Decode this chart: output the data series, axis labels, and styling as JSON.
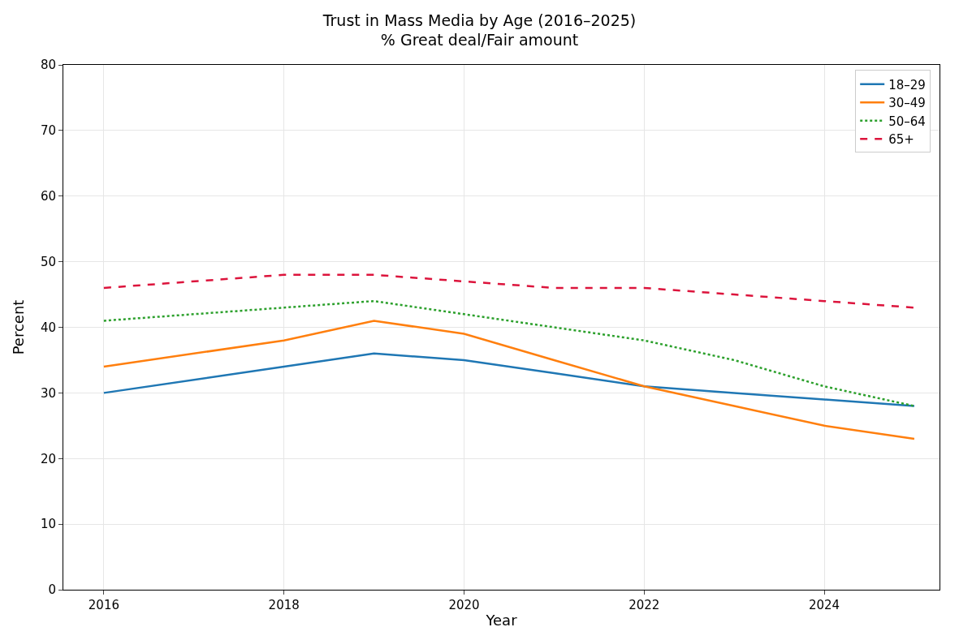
{
  "chart_data": {
    "type": "line",
    "title": "Trust in Mass Media by Age (2016–2025)",
    "subtitle": "% Great deal/Fair amount",
    "xlabel": "Year",
    "ylabel": "Percent",
    "x": [
      2016,
      2018,
      2019,
      2020,
      2021,
      2022,
      2023,
      2024,
      2025
    ],
    "series": [
      {
        "name": "18–29",
        "color": "#1f77b4",
        "line_style": "solid",
        "values": [
          30,
          34,
          36,
          35,
          33,
          31,
          30,
          29,
          28
        ]
      },
      {
        "name": "30–49",
        "color": "#ff7f0e",
        "line_style": "solid",
        "values": [
          34,
          38,
          41,
          39,
          35,
          31,
          28,
          25,
          23
        ]
      },
      {
        "name": "50–64",
        "color": "#2ca02c",
        "line_style": "dotted",
        "values": [
          41,
          43,
          44,
          42,
          40,
          38,
          35,
          31,
          28
        ]
      },
      {
        "name": "65+",
        "color": "#dc143c",
        "line_style": "dashed",
        "values": [
          46,
          48,
          48,
          47,
          46,
          46,
          45,
          44,
          43
        ]
      }
    ],
    "xlim": [
      2015.55,
      2025.28
    ],
    "xticks": [
      2016,
      2018,
      2020,
      2022,
      2024
    ],
    "ylim": [
      0,
      80
    ],
    "yticks": [
      0,
      10,
      20,
      30,
      40,
      50,
      60,
      70,
      80
    ],
    "grid": true,
    "legend": "top right"
  }
}
